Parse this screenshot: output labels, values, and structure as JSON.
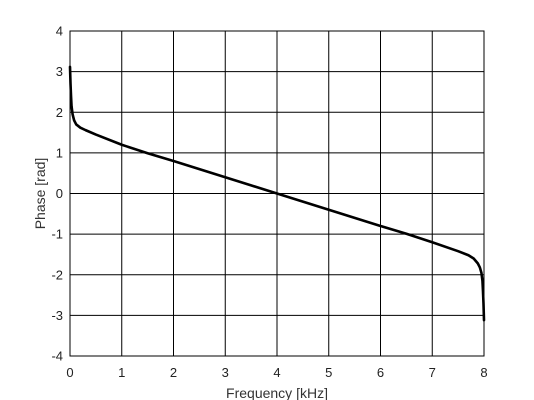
{
  "chart_data": {
    "type": "line",
    "title": "",
    "xlabel": "Frequency [kHz]",
    "ylabel": "Phase [rad]",
    "xlim": [
      0,
      8
    ],
    "ylim": [
      -4,
      4
    ],
    "x_ticks": [
      "0",
      "1",
      "2",
      "3",
      "4",
      "5",
      "6",
      "7",
      "8"
    ],
    "y_ticks": [
      "4",
      "3",
      "2",
      "1",
      "0",
      "-1",
      "-2",
      "-3",
      "-4"
    ],
    "grid": true,
    "legend": "none",
    "series": [
      {
        "color": "#000000",
        "x": [
          0.0,
          0.01,
          0.02,
          0.03,
          0.05,
          0.08,
          0.12,
          0.2,
          0.3,
          0.5,
          1.0,
          1.5,
          2.0,
          2.5,
          3.0,
          3.5,
          4.0,
          4.5,
          5.0,
          5.5,
          6.0,
          6.5,
          7.0,
          7.5,
          7.7,
          7.8,
          7.88,
          7.92,
          7.95,
          7.97,
          7.98,
          7.99,
          8.0
        ],
        "y": [
          3.12,
          2.7,
          2.4,
          2.15,
          1.95,
          1.8,
          1.7,
          1.62,
          1.56,
          1.45,
          1.2,
          0.99,
          0.8,
          0.6,
          0.4,
          0.2,
          0.0,
          -0.2,
          -0.4,
          -0.6,
          -0.8,
          -0.99,
          -1.2,
          -1.42,
          -1.52,
          -1.6,
          -1.72,
          -1.82,
          -1.95,
          -2.15,
          -2.4,
          -2.7,
          -3.12
        ]
      }
    ]
  }
}
